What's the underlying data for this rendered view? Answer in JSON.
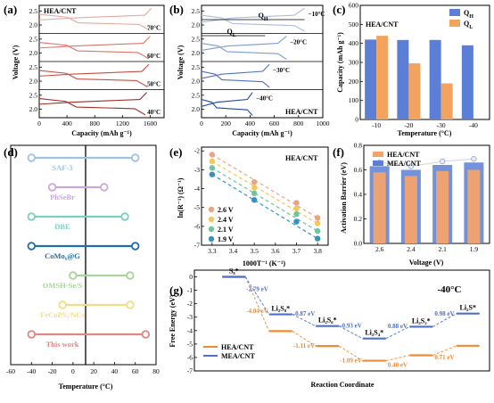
{
  "panels": {
    "a": "(a)",
    "b": "(b)",
    "c": "(c)",
    "d": "(d)",
    "e": "(e)",
    "f": "(f)",
    "g": "(g)"
  },
  "chart_data": [
    {
      "id": "a",
      "type": "line",
      "legend": "HEA/CNT",
      "xlabel": "Capacity (mAh g⁻¹)",
      "ylabel": "Voltage (V)",
      "xlim": [
        0,
        1800
      ],
      "xticks": [
        "0",
        "400",
        "800",
        "1200",
        "1600"
      ],
      "ylim": [
        1.7,
        2.7
      ],
      "yticks": [
        "2.0",
        "2.5"
      ],
      "series": [
        {
          "name": "70°C",
          "color": "#e3aaa3",
          "cap": 1600
        },
        {
          "name": "60°C",
          "color": "#d9756c",
          "cap": 1580
        },
        {
          "name": "50°C",
          "color": "#c54f45",
          "cap": 1560
        },
        {
          "name": "40°C",
          "color": "#a32a24",
          "cap": 1530
        }
      ]
    },
    {
      "id": "b",
      "type": "line",
      "legend": "HEA/CNT",
      "xlabel": "Capacity (mAh g⁻¹)",
      "ylabel": "Voltage (V)",
      "xlim": [
        0,
        1000
      ],
      "xticks": [
        "0",
        "200",
        "400",
        "600",
        "800",
        "1000"
      ],
      "ylim": [
        1.7,
        2.7
      ],
      "yticks": [
        "2.0",
        "2.5"
      ],
      "arrows": {
        "high": "Q",
        "high_sub": "H",
        "low": "Q",
        "low_sub": "L"
      },
      "series": [
        {
          "name": "−10°C",
          "color": "#a9bde0",
          "cap": 850
        },
        {
          "name": "−20°C",
          "color": "#7f9bd1",
          "cap": 700
        },
        {
          "name": "−30°C",
          "color": "#4f71b8",
          "cap": 560
        },
        {
          "name": "−40°C",
          "color": "#1f47a0",
          "cap": 420
        }
      ]
    },
    {
      "id": "c",
      "type": "bar",
      "legend_title": "HEA/CNT",
      "categories": [
        "-10",
        "-20",
        "-30",
        "-40"
      ],
      "xlabel": "Temperature (°C)",
      "ylabel": "Capacity (mAh g⁻¹)",
      "ylim": [
        0,
        600
      ],
      "yticks": [
        "0",
        "100",
        "200",
        "300",
        "400",
        "500",
        "600"
      ],
      "series": [
        {
          "name": "Q",
          "sub": "H",
          "color": "#5b7fd6",
          "values": [
            420,
            418,
            418,
            390
          ]
        },
        {
          "name": "Q",
          "sub": "L",
          "color": "#f3a35e",
          "values": [
            440,
            295,
            190,
            null
          ]
        }
      ]
    },
    {
      "id": "d",
      "type": "range",
      "xlabel": "Temperature (°C)",
      "xlim": [
        -60,
        80
      ],
      "xticks": [
        "-60",
        "-40",
        "-20",
        "0",
        "20",
        "40",
        "60",
        "80"
      ],
      "items": [
        {
          "label": "SAF-3",
          "min": -40,
          "max": 60,
          "color": "#9fc3e6"
        },
        {
          "label": "PhSeBr",
          "min": -20,
          "max": 30,
          "color": "#c9a9db"
        },
        {
          "label": "DBE",
          "min": -40,
          "max": 50,
          "color": "#7ccfc4"
        },
        {
          "label": "CoMo₆@G",
          "min": -40,
          "max": 60,
          "color": "#1f6fa8"
        },
        {
          "label": "OMSH-Se/S",
          "min": 0,
          "max": 55,
          "color": "#a8d49b"
        },
        {
          "label": "FeCoPS₃/NCs",
          "min": -10,
          "max": 55,
          "color": "#f1dd86"
        },
        {
          "label": "This work",
          "min": -40,
          "max": 70,
          "color": "#de8a84"
        }
      ]
    },
    {
      "id": "e",
      "type": "scatter",
      "legend_title": "HEA/CNT",
      "xlabel": "1000T⁻¹ (K⁻¹)",
      "ylabel": "ln(R⁻¹) (Ω⁻¹)",
      "xlim": [
        3.25,
        3.85
      ],
      "xticks": [
        "3.3",
        "3.4",
        "3.5",
        "3.6",
        "3.7",
        "3.8"
      ],
      "ylim": [
        -7,
        -1.8
      ],
      "yticks": [
        "-2",
        "-3",
        "-4",
        "-5",
        "-6",
        "-7"
      ],
      "x": [
        3.3,
        3.5,
        3.7,
        3.8
      ],
      "series": [
        {
          "name": "2.6 V",
          "color": "#e9a487",
          "values": [
            -2.2,
            -3.65,
            -4.75,
            -5.55
          ]
        },
        {
          "name": "2.4 V",
          "color": "#f2c85a",
          "values": [
            -2.55,
            -3.95,
            -5.05,
            -5.85
          ]
        },
        {
          "name": "2.1 V",
          "color": "#72c49c",
          "values": [
            -2.9,
            -4.25,
            -5.35,
            -6.25
          ]
        },
        {
          "name": "1.9 V",
          "color": "#3a8fc2",
          "values": [
            -3.25,
            -4.6,
            -5.75,
            -6.65
          ]
        }
      ]
    },
    {
      "id": "f",
      "type": "bar",
      "categories": [
        "2.6",
        "2.4",
        "2.1",
        "1.9"
      ],
      "xlabel": "Voltage (V)",
      "ylabel": "Activation Barrier (eV)",
      "ylim": [
        0,
        0.8
      ],
      "yticks": [
        "0.0",
        "0.2",
        "0.4",
        "0.6",
        "0.8"
      ],
      "series": [
        {
          "name": "HEA/CNT",
          "color": "#f2a36a",
          "values": [
            0.58,
            0.55,
            0.59,
            0.6
          ]
        },
        {
          "name": "MEA/CNT",
          "color": "#5b7fd6",
          "values": [
            0.63,
            0.6,
            0.64,
            0.66
          ]
        }
      ]
    },
    {
      "id": "g",
      "type": "line",
      "title": "-40°C",
      "xlabel": "Reaction Coordinate",
      "ylabel": "Free Energy (eV)",
      "ylim": [
        -7,
        0.5
      ],
      "yticks": [
        "0",
        "-1",
        "-2",
        "-3",
        "-4",
        "-5",
        "-6",
        "-7"
      ],
      "species": [
        "S₈*",
        "Li₂S₈*",
        "Li₂S₆*",
        "Li₂S₄*",
        "Li₂S₂*",
        "Li₂S*"
      ],
      "series": [
        {
          "name": "HEA/CNT",
          "color": "#f08a33",
          "values": [
            0,
            -4.04,
            -5.15,
            -6.24,
            -5.84,
            -5.13
          ]
        },
        {
          "name": "MEA/CNT",
          "color": "#4f6fc8",
          "values": [
            0,
            -2.79,
            -3.66,
            -4.59,
            -3.71,
            -2.73
          ]
        }
      ],
      "hea_steps": [
        "-4.04 eV",
        "-1.11 eV",
        "-1.09 eV",
        "0.40 eV",
        "0.71 eV"
      ],
      "mea_steps": [
        "-2.79 eV",
        "-0.87 eV",
        "-0.93 eV",
        "0.88 eV",
        "0.98 eV"
      ]
    }
  ]
}
